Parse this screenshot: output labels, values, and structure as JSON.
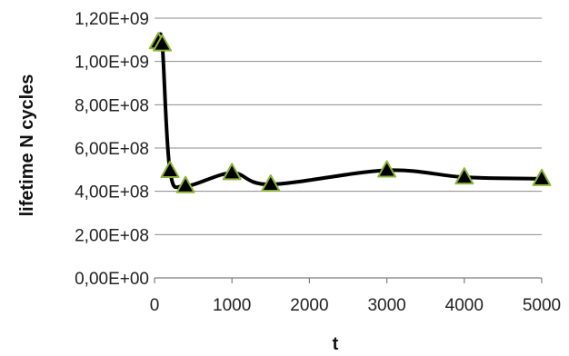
{
  "chart_data": {
    "type": "line",
    "xlabel": "t",
    "ylabel": "lifetime N cycles",
    "xlim": [
      0,
      5000
    ],
    "ylim": [
      0,
      1200000000
    ],
    "x_ticks": [
      0,
      1000,
      2000,
      3000,
      4000,
      5000
    ],
    "x_tick_labels": [
      "0",
      "1000",
      "2000",
      "3000",
      "4000",
      "5000"
    ],
    "y_ticks": [
      0,
      200000000,
      400000000,
      600000000,
      800000000,
      1000000000,
      1200000000
    ],
    "y_tick_labels": [
      "0,00E+00",
      "2,00E+08",
      "4,00E+08",
      "6,00E+08",
      "8,00E+08",
      "1,00E+09",
      "1,20E+09"
    ],
    "grid": "horizontal",
    "smoothed": true,
    "line_color": "#000000",
    "marker": "triangle",
    "marker_fill": "#000000",
    "marker_edge": "#8db33a",
    "series": [
      {
        "x": [
          50,
          100,
          200,
          400,
          1000,
          1500,
          3000,
          4000,
          5000
        ],
        "y": [
          1090000000,
          1080000000,
          495000000,
          425000000,
          485000000,
          432000000,
          497000000,
          465000000,
          458000000
        ]
      }
    ]
  }
}
